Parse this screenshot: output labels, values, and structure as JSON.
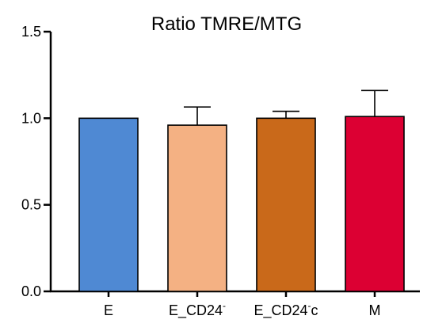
{
  "chart_data": {
    "type": "bar",
    "title": "Ratio TMRE/MTG",
    "xlabel": "",
    "ylabel": "",
    "categories": [
      {
        "base": "E",
        "sup": "",
        "tail": ""
      },
      {
        "base": "E_CD24",
        "sup": "-",
        "tail": ""
      },
      {
        "base": "E_CD24",
        "sup": "-",
        "tail": "c"
      },
      {
        "base": "M",
        "sup": "",
        "tail": ""
      }
    ],
    "values": [
      1.0,
      0.96,
      1.0,
      1.01
    ],
    "error_upper": [
      1.0,
      1.065,
      1.04,
      1.16
    ],
    "colors": [
      "#4f89d3",
      "#f4b183",
      "#c9691a",
      "#dc0033"
    ],
    "ylim": [
      0,
      1.5
    ],
    "yticks": [
      0.0,
      0.5,
      1.0,
      1.5
    ],
    "ytick_labels": [
      "0.0",
      "0.5",
      "1.0",
      "1.5"
    ],
    "grid": false,
    "legend": "none"
  }
}
